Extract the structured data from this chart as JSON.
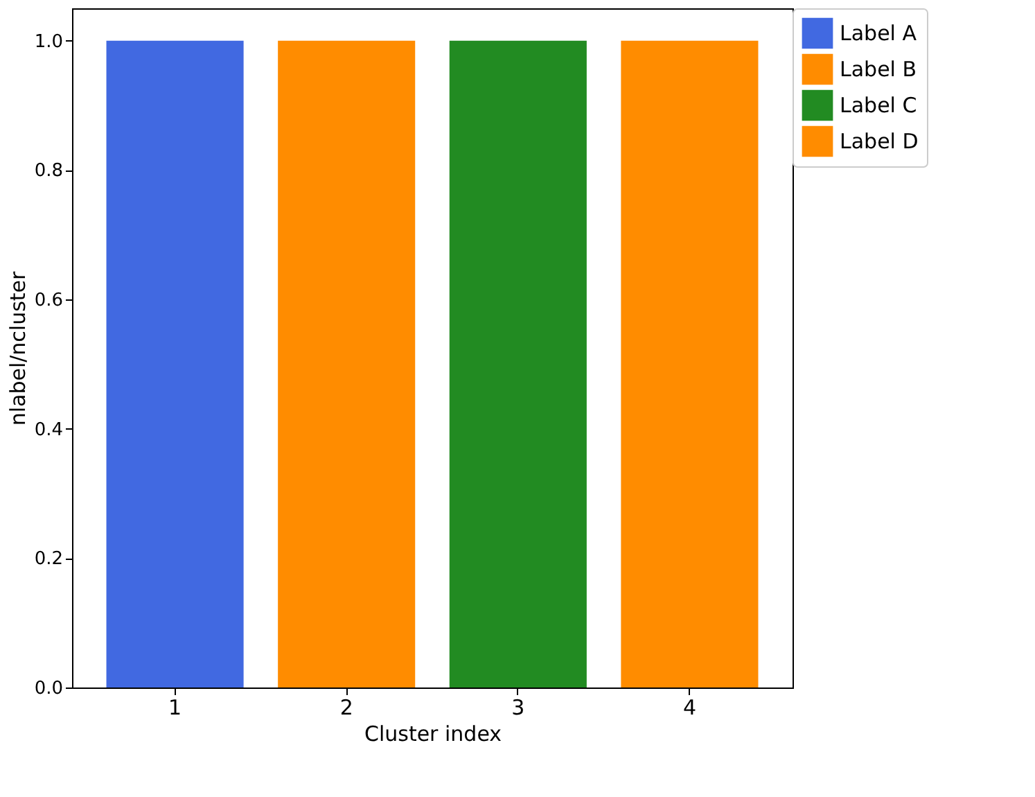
{
  "chart_data": {
    "type": "bar",
    "xlabel": "Cluster index",
    "ylabel": "nlabel/ncluster",
    "categories": [
      "1",
      "2",
      "3",
      "4"
    ],
    "series": [
      {
        "name": "Label A",
        "color": "#4169e1",
        "values": [
          1.0,
          null,
          null,
          null
        ]
      },
      {
        "name": "Label B",
        "color": "#ff8c00",
        "values": [
          null,
          1.0,
          null,
          null
        ]
      },
      {
        "name": "Label C",
        "color": "#228b22",
        "values": [
          null,
          null,
          1.0,
          null
        ]
      },
      {
        "name": "Label D",
        "color": "#ff8c00",
        "values": [
          null,
          null,
          null,
          1.0
        ]
      }
    ],
    "ylim": [
      0,
      1.05
    ],
    "yticks": [
      {
        "value": 0,
        "label": "0.0"
      },
      {
        "value": 0.2,
        "label": "0.2"
      },
      {
        "value": 0.4,
        "label": "0.4"
      },
      {
        "value": 0.6,
        "label": "0.6"
      },
      {
        "value": 0.8,
        "label": "0.8"
      },
      {
        "value": 1.0,
        "label": "1.0"
      }
    ],
    "grid": false,
    "legend": "right"
  }
}
